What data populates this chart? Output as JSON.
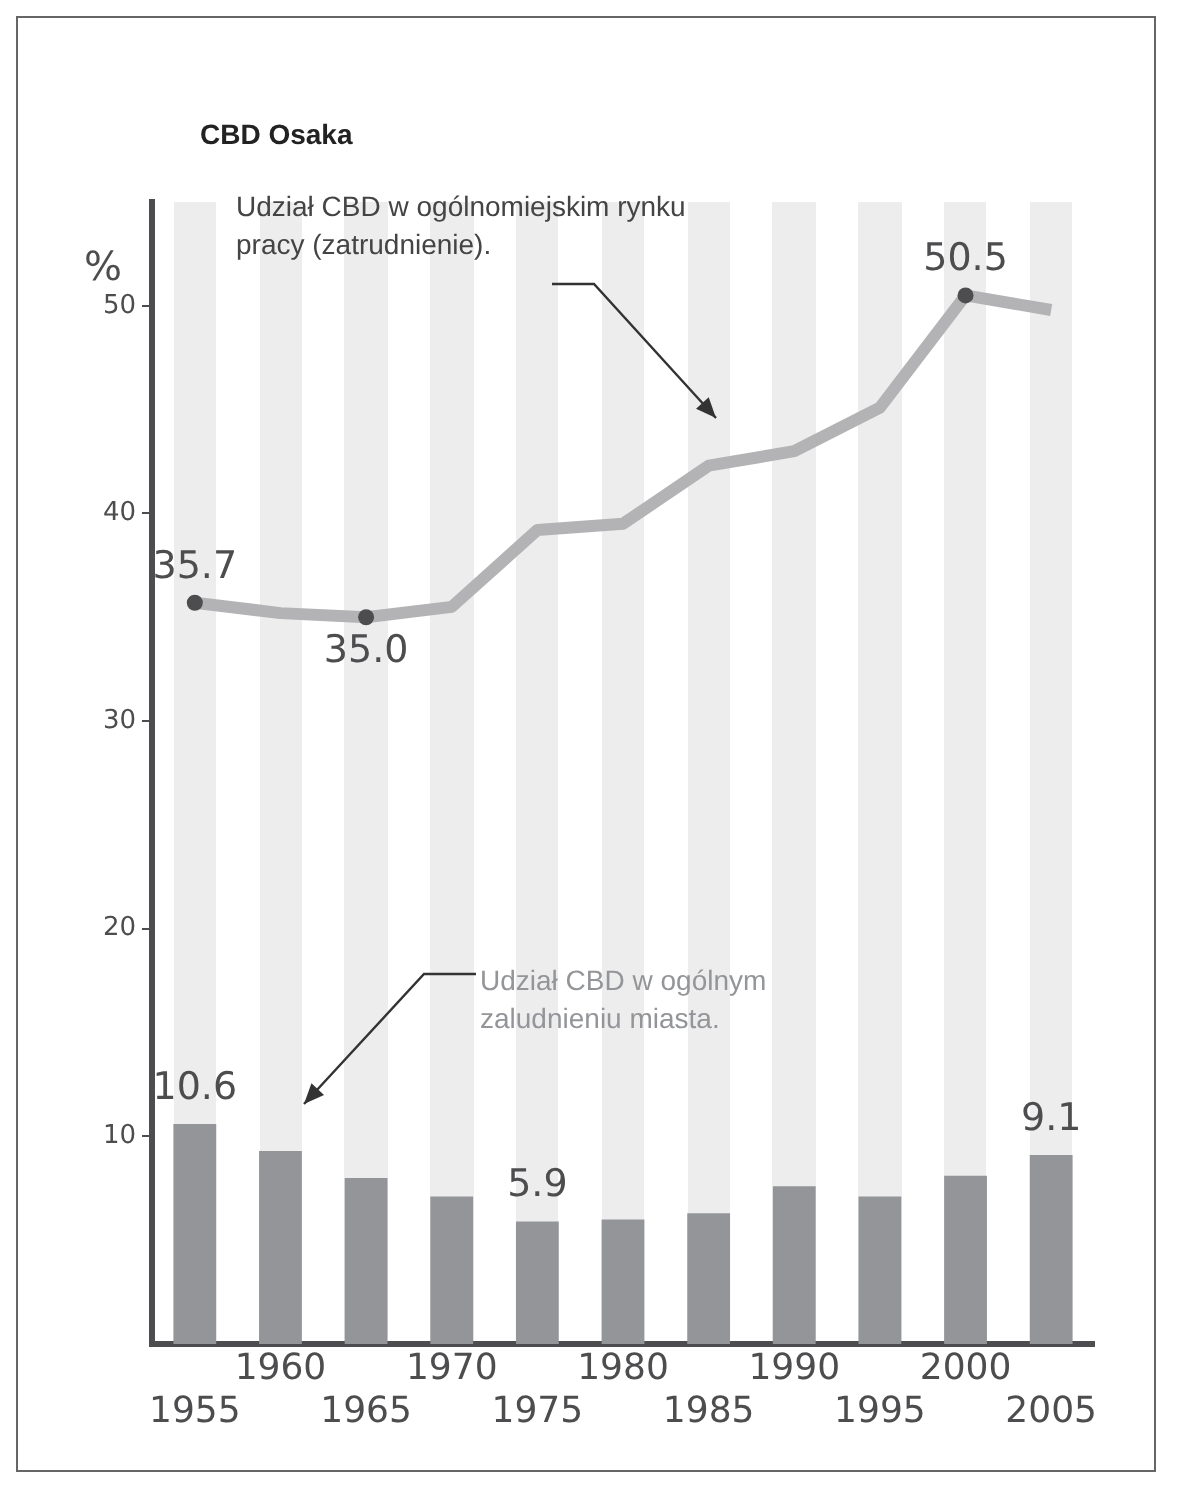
{
  "chart_data": {
    "type": "bar",
    "title": "CBD Osaka",
    "ylabel": "%",
    "categories": [
      "1955",
      "1960",
      "1965",
      "1970",
      "1975",
      "1980",
      "1985",
      "1990",
      "1995",
      "2000",
      "2005"
    ],
    "series": [
      {
        "name": "Udział CBD w ogólnym zaludnieniu miasta.",
        "color": "#939598",
        "values": [
          10.6,
          9.3,
          8.0,
          7.1,
          5.9,
          6.0,
          6.3,
          7.6,
          7.1,
          8.1,
          9.1
        ],
        "value_labels": [
          "10.6",
          null,
          null,
          null,
          "5.9",
          null,
          null,
          null,
          null,
          null,
          "9.1"
        ]
      },
      {
        "type": "line",
        "name": "Udział CBD w ogólnomiejskim rynku pracy (zatrudnienie).",
        "color": "#b3b3b5",
        "values": [
          35.7,
          35.2,
          35.0,
          35.5,
          39.2,
          39.5,
          42.3,
          43.0,
          45.1,
          50.5,
          49.8
        ],
        "value_labels": [
          "35.7",
          null,
          "35.0",
          null,
          null,
          null,
          null,
          null,
          null,
          "50.5",
          null
        ]
      }
    ],
    "ylim": [
      0,
      55
    ],
    "yticks": [
      10,
      20,
      30,
      40,
      50
    ],
    "grid": false,
    "legend": false
  }
}
